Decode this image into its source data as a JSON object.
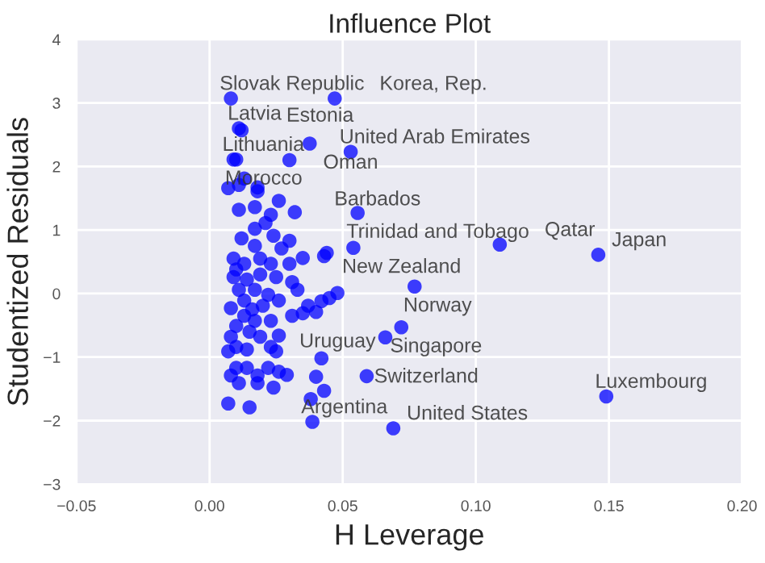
{
  "chart_data": {
    "type": "scatter",
    "title": "Influence Plot",
    "xlabel": "H Leverage",
    "ylabel": "Studentized Residuals",
    "xlim": [
      -0.05,
      0.2
    ],
    "ylim": [
      -3,
      4
    ],
    "xticks": [
      {
        "value": -0.05,
        "label": "−0.05"
      },
      {
        "value": 0,
        "label": "0.00"
      },
      {
        "value": 0.05,
        "label": "0.05"
      },
      {
        "value": 0.1,
        "label": "0.10"
      },
      {
        "value": 0.15,
        "label": "0.15"
      },
      {
        "value": 0.2,
        "label": "0.20"
      }
    ],
    "yticks": [
      {
        "value": -3,
        "label": "−3"
      },
      {
        "value": -2,
        "label": "−2"
      },
      {
        "value": -1,
        "label": "−1"
      },
      0,
      1,
      2,
      3,
      4
    ],
    "grid": true,
    "marker": "circle",
    "series": [
      {
        "color": "#0000ff",
        "x": [
          0.008,
          0.047,
          0.011,
          0.012,
          0.009,
          0.01,
          0.0376,
          0.053,
          0.03,
          0.0556,
          0.054,
          0.109,
          0.146,
          0.077,
          0.072,
          0.066,
          0.059,
          0.149,
          0.0386,
          0.069,
          0.007,
          0.011,
          0.013,
          0.018,
          0.018,
          0.011,
          0.017,
          0.026,
          0.032,
          0.023,
          0.021,
          0.017,
          0.012,
          0.024,
          0.017,
          0.03,
          0.027,
          0.035,
          0.044,
          0.043,
          0.009,
          0.01,
          0.013,
          0.019,
          0.023,
          0.03,
          0.009,
          0.014,
          0.019,
          0.025,
          0.031,
          0.033,
          0.011,
          0.017,
          0.022,
          0.026,
          0.048,
          0.045,
          0.042,
          0.037,
          0.035,
          0.04,
          0.031,
          0.008,
          0.013,
          0.017,
          0.023,
          0.008,
          0.01,
          0.007,
          0.014,
          0.019,
          0.023,
          0.026,
          0.025,
          0.01,
          0.014,
          0.008,
          0.011,
          0.018,
          0.018,
          0.022,
          0.024,
          0.026,
          0.029,
          0.042,
          0.04,
          0.043,
          0.038,
          0.007,
          0.015,
          0.016,
          0.02,
          0.013,
          0.01,
          0.015
        ],
        "values": [
          3.07,
          3.07,
          2.6,
          2.57,
          2.11,
          2.11,
          2.36,
          2.23,
          2.1,
          1.27,
          0.72,
          0.77,
          0.61,
          0.11,
          -0.53,
          -0.69,
          -1.3,
          -1.62,
          -2.02,
          -2.12,
          1.66,
          1.71,
          1.81,
          1.67,
          1.61,
          1.32,
          1.36,
          1.46,
          1.28,
          1.24,
          1.11,
          1.02,
          0.87,
          0.91,
          0.75,
          0.83,
          0.71,
          0.56,
          0.64,
          0.59,
          0.55,
          0.38,
          0.47,
          0.55,
          0.47,
          0.47,
          0.26,
          0.22,
          0.3,
          0.26,
          0.18,
          0.06,
          0.06,
          0.06,
          -0.02,
          -0.11,
          0.01,
          -0.07,
          -0.12,
          -0.19,
          -0.31,
          -0.29,
          -0.35,
          -0.23,
          -0.35,
          -0.43,
          -0.43,
          -0.68,
          -0.84,
          -0.91,
          -0.88,
          -0.68,
          -0.84,
          -0.66,
          -0.91,
          -1.17,
          -1.17,
          -1.29,
          -1.41,
          -1.29,
          -1.41,
          -1.17,
          -1.48,
          -1.23,
          -1.28,
          -1.02,
          -1.31,
          -1.53,
          -1.66,
          -1.73,
          -1.79,
          -0.25,
          -0.19,
          -0.11,
          -0.51,
          -0.6
        ]
      }
    ],
    "annotations": [
      {
        "text": "Slovak Republic",
        "x": 0.008,
        "y": 3.07
      },
      {
        "text": "Korea, Rep.",
        "x": 0.047,
        "y": 3.07
      },
      {
        "text": "Latvia",
        "x": 0.011,
        "y": 2.6
      },
      {
        "text": "Estonia",
        "x": 0.012,
        "y": 2.57
      },
      {
        "text": "Lithuania",
        "x": 0.009,
        "y": 2.11
      },
      {
        "text": "Morocco",
        "x": 0.01,
        "y": 2.11
      },
      {
        "text": "Oman",
        "x": 0.0376,
        "y": 2.36
      },
      {
        "text": "United Arab Emirates",
        "x": 0.053,
        "y": 2.23
      },
      {
        "text": "Barbados",
        "x": 0.03,
        "y": 2.1
      },
      {
        "text": "Trinidad and Tobago",
        "x": 0.0556,
        "y": 1.27
      },
      {
        "text": "New Zealand",
        "x": 0.054,
        "y": 0.72
      },
      {
        "text": "Qatar",
        "x": 0.109,
        "y": 0.77
      },
      {
        "text": "Japan",
        "x": 0.146,
        "y": 0.61
      },
      {
        "text": "Norway",
        "x": 0.077,
        "y": 0.11
      },
      {
        "text": "Singapore",
        "x": 0.072,
        "y": -0.53
      },
      {
        "text": "Switzerland",
        "x": 0.066,
        "y": -0.69
      },
      {
        "text": "Uruguay",
        "x": 0.059,
        "y": -1.3
      },
      {
        "text": "Luxembourg",
        "x": 0.149,
        "y": -1.62
      },
      {
        "text": "Argentina",
        "x": 0.0386,
        "y": -2.02
      },
      {
        "text": "United States",
        "x": 0.069,
        "y": -2.12
      }
    ]
  }
}
